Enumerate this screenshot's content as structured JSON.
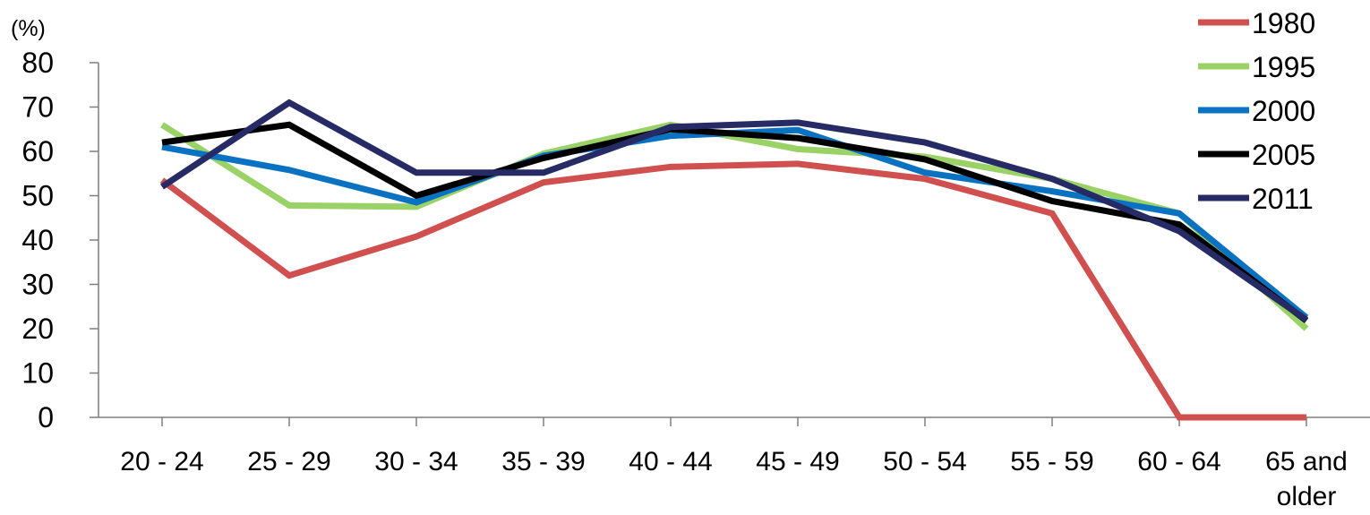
{
  "chart_data": {
    "type": "line",
    "unit_label": "(%)",
    "categories": [
      "20 - 24",
      "25 - 29",
      "30 - 34",
      "35 - 39",
      "40 - 44",
      "45 - 49",
      "50 - 54",
      "55 - 59",
      "60 - 64",
      "65 and older"
    ],
    "ylim": [
      0,
      80
    ],
    "yticks": [
      "0",
      "10",
      "20",
      "30",
      "40",
      "50",
      "60",
      "70",
      "80"
    ],
    "grid": false,
    "legend_position": "top-right",
    "series": [
      {
        "name": "1980",
        "color": "#d05050",
        "values": [
          53.5,
          32,
          40.8,
          53,
          56.5,
          57.2,
          53.8,
          46,
          0,
          0
        ]
      },
      {
        "name": "1995",
        "color": "#9bd267",
        "values": [
          66,
          47.8,
          47.5,
          59.5,
          66,
          60.5,
          58.8,
          53.8,
          46,
          20
        ]
      },
      {
        "name": "2000",
        "color": "#0b72c1",
        "values": [
          61,
          55.8,
          48.5,
          59,
          63.5,
          64.8,
          55.2,
          51,
          46,
          22.5
        ]
      },
      {
        "name": "2005",
        "color": "#000000",
        "values": [
          62,
          66,
          50,
          58.5,
          65,
          63,
          58.2,
          48.8,
          43.5,
          21.8
        ]
      },
      {
        "name": "2011",
        "color": "#262b66",
        "values": [
          52,
          71,
          55.2,
          55.2,
          65.5,
          66.5,
          62,
          53.8,
          42,
          22
        ]
      }
    ]
  }
}
